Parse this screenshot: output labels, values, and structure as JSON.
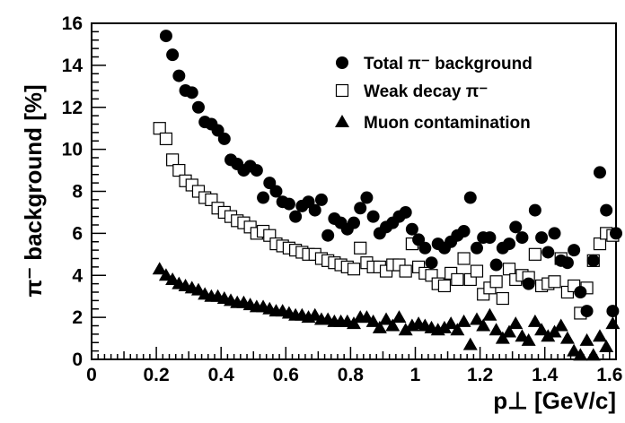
{
  "chart_data": {
    "type": "scatter",
    "xlabel": "p⊥ [GeV/c]",
    "ylabel": "π⁻ background [%]",
    "xlim": [
      0,
      1.62
    ],
    "ylim": [
      0,
      16
    ],
    "x_ticks": [
      "0",
      "0.2",
      "0.4",
      "0.6",
      "0.8",
      "1",
      "1.2",
      "1.4",
      "1.6"
    ],
    "y_ticks": [
      "0",
      "2",
      "4",
      "6",
      "8",
      "10",
      "12",
      "14",
      "16"
    ],
    "grid": false,
    "legend_position": "top-right",
    "series": [
      {
        "name": "Total π⁻ background",
        "marker": "filled-circle",
        "color": "#000000",
        "points": [
          [
            0.23,
            15.4
          ],
          [
            0.25,
            14.5
          ],
          [
            0.27,
            13.5
          ],
          [
            0.29,
            12.8
          ],
          [
            0.31,
            12.7
          ],
          [
            0.33,
            12.0
          ],
          [
            0.35,
            11.3
          ],
          [
            0.37,
            11.2
          ],
          [
            0.39,
            10.9
          ],
          [
            0.41,
            10.5
          ],
          [
            0.43,
            9.5
          ],
          [
            0.45,
            9.3
          ],
          [
            0.47,
            9.0
          ],
          [
            0.49,
            9.2
          ],
          [
            0.51,
            9.0
          ],
          [
            0.53,
            7.7
          ],
          [
            0.55,
            8.4
          ],
          [
            0.57,
            8.0
          ],
          [
            0.59,
            7.5
          ],
          [
            0.61,
            7.4
          ],
          [
            0.63,
            6.8
          ],
          [
            0.65,
            7.3
          ],
          [
            0.67,
            7.5
          ],
          [
            0.69,
            7.1
          ],
          [
            0.71,
            7.6
          ],
          [
            0.73,
            5.9
          ],
          [
            0.75,
            6.7
          ],
          [
            0.77,
            6.5
          ],
          [
            0.79,
            6.2
          ],
          [
            0.81,
            6.5
          ],
          [
            0.83,
            7.2
          ],
          [
            0.85,
            7.7
          ],
          [
            0.87,
            6.8
          ],
          [
            0.89,
            6.0
          ],
          [
            0.91,
            6.3
          ],
          [
            0.93,
            6.5
          ],
          [
            0.95,
            6.8
          ],
          [
            0.97,
            7.0
          ],
          [
            0.99,
            6.2
          ],
          [
            1.01,
            5.7
          ],
          [
            1.03,
            5.3
          ],
          [
            1.05,
            4.6
          ],
          [
            1.07,
            5.5
          ],
          [
            1.09,
            5.3
          ],
          [
            1.11,
            5.6
          ],
          [
            1.13,
            5.9
          ],
          [
            1.15,
            6.1
          ],
          [
            1.17,
            7.7
          ],
          [
            1.19,
            5.3
          ],
          [
            1.21,
            5.8
          ],
          [
            1.23,
            5.8
          ],
          [
            1.25,
            4.5
          ],
          [
            1.27,
            5.3
          ],
          [
            1.29,
            5.5
          ],
          [
            1.31,
            6.3
          ],
          [
            1.33,
            5.8
          ],
          [
            1.35,
            3.6
          ],
          [
            1.37,
            7.1
          ],
          [
            1.39,
            5.8
          ],
          [
            1.41,
            5.1
          ],
          [
            1.43,
            6.0
          ],
          [
            1.45,
            4.7
          ],
          [
            1.47,
            4.6
          ],
          [
            1.49,
            5.2
          ],
          [
            1.51,
            3.2
          ],
          [
            1.53,
            2.3
          ],
          [
            1.55,
            4.7
          ],
          [
            1.57,
            8.9
          ],
          [
            1.59,
            7.1
          ],
          [
            1.61,
            2.3
          ],
          [
            1.62,
            6.0
          ]
        ]
      },
      {
        "name": "Weak decay π⁻",
        "marker": "open-square",
        "color": "#000000",
        "points": [
          [
            0.21,
            11.0
          ],
          [
            0.23,
            10.5
          ],
          [
            0.25,
            9.5
          ],
          [
            0.27,
            9.0
          ],
          [
            0.29,
            8.5
          ],
          [
            0.31,
            8.3
          ],
          [
            0.33,
            8.0
          ],
          [
            0.35,
            7.7
          ],
          [
            0.37,
            7.6
          ],
          [
            0.39,
            7.2
          ],
          [
            0.41,
            7.0
          ],
          [
            0.43,
            6.8
          ],
          [
            0.45,
            6.6
          ],
          [
            0.47,
            6.5
          ],
          [
            0.49,
            6.3
          ],
          [
            0.51,
            6.0
          ],
          [
            0.53,
            6.1
          ],
          [
            0.55,
            5.9
          ],
          [
            0.57,
            5.5
          ],
          [
            0.59,
            5.4
          ],
          [
            0.61,
            5.3
          ],
          [
            0.63,
            5.2
          ],
          [
            0.65,
            5.1
          ],
          [
            0.67,
            5.0
          ],
          [
            0.69,
            5.0
          ],
          [
            0.71,
            4.8
          ],
          [
            0.73,
            4.7
          ],
          [
            0.75,
            4.6
          ],
          [
            0.77,
            4.5
          ],
          [
            0.79,
            4.4
          ],
          [
            0.81,
            4.3
          ],
          [
            0.83,
            5.3
          ],
          [
            0.85,
            4.6
          ],
          [
            0.87,
            4.4
          ],
          [
            0.89,
            4.4
          ],
          [
            0.91,
            4.2
          ],
          [
            0.93,
            4.5
          ],
          [
            0.95,
            4.5
          ],
          [
            0.97,
            4.2
          ],
          [
            0.99,
            5.5
          ],
          [
            1.01,
            4.4
          ],
          [
            1.03,
            4.1
          ],
          [
            1.05,
            4.0
          ],
          [
            1.07,
            3.6
          ],
          [
            1.09,
            3.5
          ],
          [
            1.11,
            4.1
          ],
          [
            1.13,
            3.8
          ],
          [
            1.15,
            4.8
          ],
          [
            1.17,
            3.8
          ],
          [
            1.19,
            4.2
          ],
          [
            1.21,
            3.1
          ],
          [
            1.23,
            3.4
          ],
          [
            1.25,
            3.7
          ],
          [
            1.27,
            2.9
          ],
          [
            1.29,
            4.3
          ],
          [
            1.31,
            3.8
          ],
          [
            1.33,
            4.0
          ],
          [
            1.35,
            3.9
          ],
          [
            1.37,
            5.0
          ],
          [
            1.39,
            3.5
          ],
          [
            1.41,
            3.6
          ],
          [
            1.43,
            3.7
          ],
          [
            1.45,
            4.8
          ],
          [
            1.47,
            3.2
          ],
          [
            1.49,
            3.5
          ],
          [
            1.51,
            2.2
          ],
          [
            1.53,
            3.4
          ],
          [
            1.55,
            4.7
          ],
          [
            1.57,
            5.5
          ],
          [
            1.59,
            6.0
          ],
          [
            1.61,
            5.9
          ]
        ]
      },
      {
        "name": "Muon contamination",
        "marker": "filled-triangle",
        "color": "#000000",
        "points": [
          [
            0.21,
            4.3
          ],
          [
            0.23,
            4.0
          ],
          [
            0.25,
            3.8
          ],
          [
            0.27,
            3.6
          ],
          [
            0.29,
            3.5
          ],
          [
            0.31,
            3.4
          ],
          [
            0.33,
            3.3
          ],
          [
            0.35,
            3.1
          ],
          [
            0.37,
            3.0
          ],
          [
            0.39,
            3.0
          ],
          [
            0.41,
            2.9
          ],
          [
            0.43,
            2.8
          ],
          [
            0.45,
            2.7
          ],
          [
            0.47,
            2.7
          ],
          [
            0.49,
            2.6
          ],
          [
            0.51,
            2.5
          ],
          [
            0.53,
            2.5
          ],
          [
            0.55,
            2.4
          ],
          [
            0.57,
            2.3
          ],
          [
            0.59,
            2.3
          ],
          [
            0.61,
            2.2
          ],
          [
            0.63,
            2.1
          ],
          [
            0.65,
            2.1
          ],
          [
            0.67,
            2.0
          ],
          [
            0.69,
            2.1
          ],
          [
            0.71,
            1.9
          ],
          [
            0.73,
            1.9
          ],
          [
            0.75,
            1.8
          ],
          [
            0.77,
            1.8
          ],
          [
            0.79,
            1.8
          ],
          [
            0.81,
            1.7
          ],
          [
            0.83,
            2.0
          ],
          [
            0.85,
            2.0
          ],
          [
            0.87,
            1.8
          ],
          [
            0.89,
            1.5
          ],
          [
            0.91,
            1.9
          ],
          [
            0.93,
            1.6
          ],
          [
            0.95,
            2.0
          ],
          [
            0.97,
            1.4
          ],
          [
            0.99,
            1.6
          ],
          [
            1.01,
            1.7
          ],
          [
            1.03,
            1.6
          ],
          [
            1.05,
            1.5
          ],
          [
            1.07,
            1.4
          ],
          [
            1.09,
            1.5
          ],
          [
            1.11,
            1.7
          ],
          [
            1.13,
            1.4
          ],
          [
            1.15,
            1.8
          ],
          [
            1.17,
            0.7
          ],
          [
            1.19,
            1.9
          ],
          [
            1.21,
            1.6
          ],
          [
            1.23,
            2.1
          ],
          [
            1.25,
            1.4
          ],
          [
            1.27,
            1.0
          ],
          [
            1.29,
            1.3
          ],
          [
            1.31,
            1.7
          ],
          [
            1.33,
            1.1
          ],
          [
            1.35,
            0.9
          ],
          [
            1.37,
            1.8
          ],
          [
            1.39,
            1.4
          ],
          [
            1.41,
            1.1
          ],
          [
            1.43,
            1.3
          ],
          [
            1.45,
            1.6
          ],
          [
            1.47,
            1.0
          ],
          [
            1.49,
            0.4
          ],
          [
            1.51,
            0.2
          ],
          [
            1.53,
            0.9
          ],
          [
            1.55,
            0.2
          ],
          [
            1.57,
            1.1
          ],
          [
            1.59,
            0.6
          ],
          [
            1.61,
            1.7
          ]
        ]
      }
    ]
  }
}
